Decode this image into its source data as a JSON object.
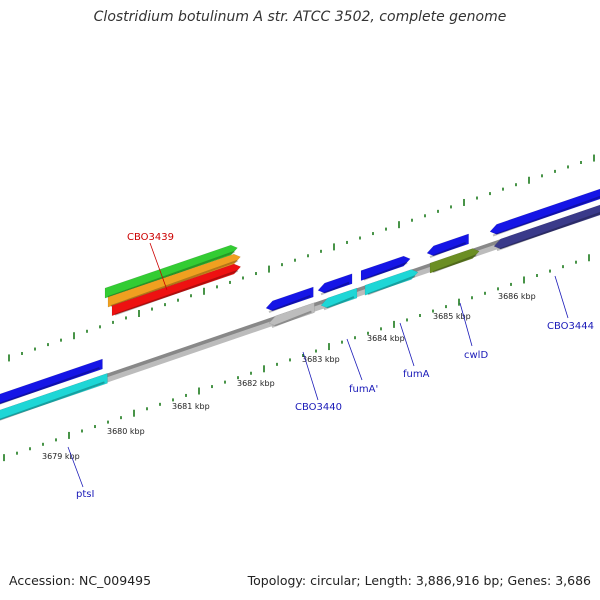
{
  "title": "Clostridium botulinum A str. ATCC 3502, complete genome",
  "footer": {
    "accession": "Accession: NC_009495",
    "topology": "Topology: circular; Length: 3,886,916 bp; Genes: 3,686"
  },
  "kbp_labels": [
    "3679 kbp",
    "3680 kbp",
    "3681 kbp",
    "3682 kbp",
    "3683 kbp",
    "3684 kbp",
    "3685 kbp",
    "3686 kbp"
  ],
  "genes": [
    {
      "name": "ptsI",
      "color": "#1a1ab8"
    },
    {
      "name": "CBO3439",
      "color": "#cc0000"
    },
    {
      "name": "CBO3440",
      "color": "#1a1ab8"
    },
    {
      "name": "fumA'",
      "color": "#1a1ab8"
    },
    {
      "name": "fumA",
      "color": "#1a1ab8"
    },
    {
      "name": "cwlD",
      "color": "#1a1ab8"
    },
    {
      "name": "CBO3444",
      "color": "#1a1ab8"
    }
  ],
  "colors": {
    "blue": "#1515e6",
    "cyan": "#1ed6d6",
    "red": "#ee1111",
    "orange": "#f0a020",
    "green": "#33cc33",
    "olive": "#6b8e23",
    "navy": "#3a3a8a",
    "grey": "#bdbdbd",
    "backbone": "#888888",
    "tick": "#1a7a1a"
  }
}
